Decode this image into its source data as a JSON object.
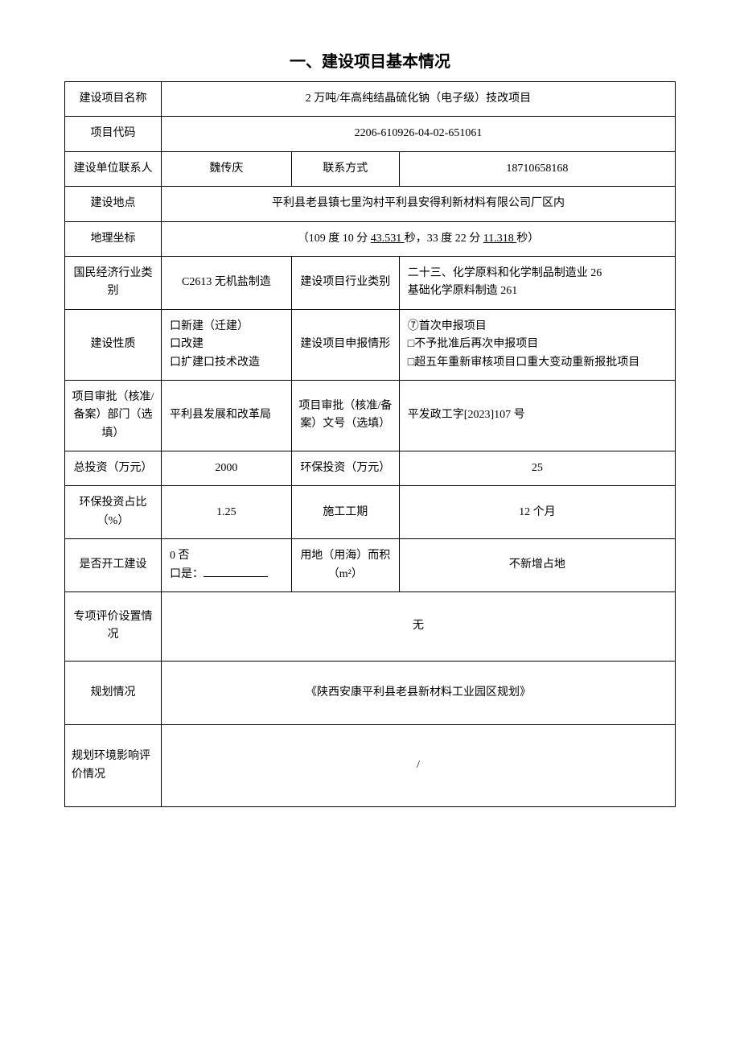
{
  "title": "一、建设项目基本情况",
  "rows": {
    "project_name": {
      "label": "建设项目名称",
      "value": "2 万吨/年高纯结晶硫化钠（电子级）技改项目"
    },
    "project_code": {
      "label": "项目代码",
      "value": "2206-610926-04-02-651061"
    },
    "contact": {
      "label": "建设单位联系人",
      "value": "魏传庆",
      "contact_label": "联系方式",
      "contact_value": "18710658168"
    },
    "location": {
      "label": "建设地点",
      "value": "平利县老县镇七里沟村平利县安得利新材料有限公司厂区内"
    },
    "coordinates": {
      "label": "地理坐标",
      "prefix": "（109 度 10 分 ",
      "sec1": "43.531 ",
      "mid": "秒，33 度 22 分 ",
      "sec2": "11.318 ",
      "suffix": "秒）"
    },
    "industry": {
      "label": "国民经济行业类别",
      "value": "C2613 无机盐制造",
      "category_label": "建设项目行业类别",
      "category_value": "二十三、化学原料和化学制品制造业 26\n基础化学原料制造 261"
    },
    "nature": {
      "label": "建设性质",
      "opt1": "口新建（迁建）",
      "opt2": "口改建",
      "opt3": "口扩建口技术改造",
      "declare_label": "建设项目申报情形",
      "declare_opt1": "⑦首次申报项目",
      "declare_opt2": "□不予批准后再次申报项目",
      "declare_opt3": "□超五年重新审核项目口重大变动重新报批项目"
    },
    "approval": {
      "label": "项目审批（核准/备案）部门（选填）",
      "value": "平利县发展和改革局",
      "doc_label": "项目审批（核准/备案）文号（选填）",
      "doc_value": "平发政工字[2023]107 号"
    },
    "investment": {
      "label": "总投资（万元）",
      "value": "2000",
      "env_label": "环保投资（万元）",
      "env_value": "25"
    },
    "env_ratio": {
      "label": "环保投资占比（%）",
      "value": "1.25",
      "period_label": "施工工期",
      "period_value": "12 个月"
    },
    "started": {
      "label": "是否开工建设",
      "opt1": "0 否",
      "opt2_prefix": "口是：",
      "land_label": "用地（用海）而积（m²）",
      "land_value": "不新增占地"
    },
    "special_eval": {
      "label": "专项评价设置情况",
      "value": "无"
    },
    "planning": {
      "label": "规划情况",
      "value": "《陕西安康平利县老县新材料工业园区规划》"
    },
    "plan_env": {
      "label": "规划环境影响评价情况",
      "value": "/"
    }
  }
}
